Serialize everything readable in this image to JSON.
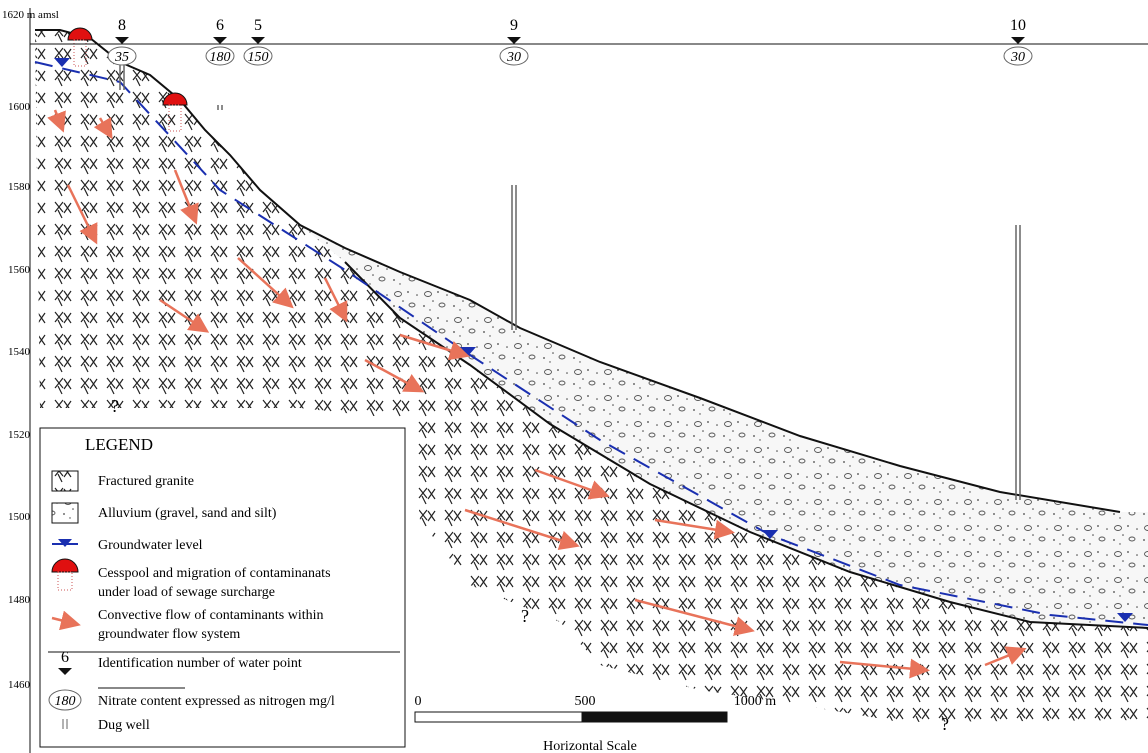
{
  "elevation_axis": {
    "labels": [
      "1620 m amsl",
      "1600",
      "1580",
      "1560",
      "1540",
      "1520",
      "1500",
      "1480",
      "1460"
    ]
  },
  "wells": [
    {
      "id": "8",
      "nitrate": "35"
    },
    {
      "id": "6",
      "nitrate": "180"
    },
    {
      "id": "5",
      "nitrate": "150"
    },
    {
      "id": "9",
      "nitrate": "30"
    },
    {
      "id": "10",
      "nitrate": "30"
    }
  ],
  "unknown_markers": [
    "?",
    "?",
    "?"
  ],
  "legend": {
    "title": "LEGEND",
    "items": [
      {
        "lines": [
          "Fractured granite"
        ]
      },
      {
        "lines": [
          "Alluvium (gravel, sand and silt)"
        ]
      },
      {
        "lines": [
          "Groundwater level"
        ]
      },
      {
        "lines": [
          "Cesspool and migration of contaminanats",
          "under load of sewage surcharge"
        ]
      },
      {
        "lines": [
          "Convective flow of contaminants within",
          "groundwater flow system"
        ]
      },
      {
        "symbol": "6",
        "lines": [
          "Identification number of water point"
        ]
      },
      {
        "symbol": "180",
        "lines": [
          "Nitrate  content expressed as nitrogen mg/l"
        ]
      },
      {
        "lines": [
          "Dug well"
        ]
      }
    ]
  },
  "scale": {
    "labels": [
      "0",
      "500",
      "1000 m"
    ],
    "title": "Horizontal Scale"
  }
}
